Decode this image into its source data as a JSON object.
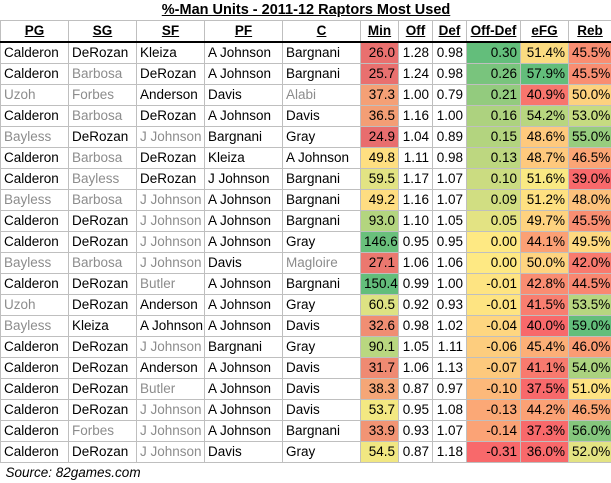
{
  "title": "%-Man Units - 2011-12 Raptors Most Used",
  "source": "Source: 82games.com",
  "headers": [
    "PG",
    "SG",
    "SF",
    "PF",
    "C",
    "Min",
    "Off",
    "Def",
    "Off-Def",
    "eFG",
    "Reb"
  ],
  "rows": [
    {
      "pg": "Calderon",
      "sg": "DeRozan",
      "sf": "Kleiza",
      "pf": "A Johnson",
      "c": "Bargnani",
      "min": "26.0",
      "off": "1.28",
      "def": "0.98",
      "offdef": "0.30",
      "efg": "51.4%",
      "reb": "45.5%",
      "dim": [],
      "colors": {
        "min": "#e9706f",
        "offdef": "#63be7b",
        "efg": "#fbdb81",
        "reb": "#f98e72"
      }
    },
    {
      "pg": "Calderon",
      "sg": "Barbosa",
      "sf": "DeRozan",
      "pf": "A Johnson",
      "c": "Bargnani",
      "min": "25.7",
      "off": "1.24",
      "def": "0.98",
      "offdef": "0.26",
      "efg": "57.9%",
      "reb": "45.5%",
      "dim": [
        "sg"
      ],
      "colors": {
        "min": "#e9706f",
        "offdef": "#79c47d",
        "efg": "#63be7b",
        "reb": "#f98e72"
      }
    },
    {
      "pg": "Uzoh",
      "sg": "Forbes",
      "sf": "Anderson",
      "pf": "Davis",
      "c": "Alabi",
      "min": "37.3",
      "off": "1.00",
      "def": "0.79",
      "offdef": "0.21",
      "efg": "40.9%",
      "reb": "50.0%",
      "dim": [
        "pg",
        "sg",
        "c"
      ],
      "colors": {
        "min": "#f4a076",
        "offdef": "#93cb7e",
        "efg": "#f8756d",
        "reb": "#fdd17f"
      }
    },
    {
      "pg": "Calderon",
      "sg": "Barbosa",
      "sf": "DeRozan",
      "pf": "A Johnson",
      "c": "Davis",
      "min": "36.5",
      "off": "1.16",
      "def": "1.00",
      "offdef": "0.16",
      "efg": "54.2%",
      "reb": "53.0%",
      "dim": [
        "sg"
      ],
      "colors": {
        "min": "#f39e75",
        "offdef": "#add27f",
        "efg": "#b8d680",
        "reb": "#c6db81"
      }
    },
    {
      "pg": "Bayless",
      "sg": "DeRozan",
      "sf": "J Johnson",
      "pf": "Bargnani",
      "c": "Gray",
      "min": "24.9",
      "off": "1.04",
      "def": "0.89",
      "offdef": "0.15",
      "efg": "48.6%",
      "reb": "55.0%",
      "dim": [
        "pg",
        "sf"
      ],
      "colors": {
        "min": "#e86d6e",
        "offdef": "#b3d47f",
        "efg": "#fec97d",
        "reb": "#97cd7e"
      }
    },
    {
      "pg": "Calderon",
      "sg": "Barbosa",
      "sf": "DeRozan",
      "pf": "Kleiza",
      "c": "A Johnson",
      "min": "49.8",
      "off": "1.11",
      "def": "0.98",
      "offdef": "0.13",
      "efg": "48.7%",
      "reb": "46.5%",
      "dim": [
        "sg"
      ],
      "colors": {
        "min": "#fedf81",
        "offdef": "#bdd780",
        "efg": "#fec97d",
        "reb": "#fba575"
      }
    },
    {
      "pg": "Calderon",
      "sg": "Bayless",
      "sf": "DeRozan",
      "pf": "J Johnson",
      "c": "Bargnani",
      "min": "59.5",
      "off": "1.17",
      "def": "1.07",
      "offdef": "0.10",
      "efg": "51.6%",
      "reb": "39.0%",
      "dim": [
        "sg"
      ],
      "colors": {
        "min": "#e2e383",
        "offdef": "#cbdc81",
        "efg": "#f9e983",
        "reb": "#f8696b"
      }
    },
    {
      "pg": "Bayless",
      "sg": "Barbosa",
      "sf": "J Johnson",
      "pf": "A Johnson",
      "c": "Bargnani",
      "min": "49.2",
      "off": "1.16",
      "def": "1.07",
      "offdef": "0.09",
      "efg": "51.2%",
      "reb": "48.0%",
      "dim": [
        "pg",
        "sg",
        "sf"
      ],
      "colors": {
        "min": "#fedd81",
        "offdef": "#d1de82",
        "efg": "#fee181",
        "reb": "#fdc17c"
      }
    },
    {
      "pg": "Calderon",
      "sg": "DeRozan",
      "sf": "J Johnson",
      "pf": "A Johnson",
      "c": "Bargnani",
      "min": "93.0",
      "off": "1.10",
      "def": "1.05",
      "offdef": "0.05",
      "efg": "49.7%",
      "reb": "45.5%",
      "dim": [
        "sf"
      ],
      "colors": {
        "min": "#b3d57f",
        "offdef": "#e3e383",
        "efg": "#fed27f",
        "reb": "#f98e72"
      }
    },
    {
      "pg": "Calderon",
      "sg": "DeRozan",
      "sf": "J Johnson",
      "pf": "A Johnson",
      "c": "Gray",
      "min": "146.6",
      "off": "0.95",
      "def": "0.95",
      "offdef": "0.00",
      "efg": "44.1%",
      "reb": "49.5%",
      "dim": [
        "sf"
      ],
      "colors": {
        "min": "#6ac07c",
        "offdef": "#fee983",
        "efg": "#fba075",
        "reb": "#fed980"
      }
    },
    {
      "pg": "Bayless",
      "sg": "Barbosa",
      "sf": "J Johnson",
      "pf": "Davis",
      "c": "Magloire",
      "min": "27.1",
      "off": "1.06",
      "def": "1.06",
      "offdef": "0.00",
      "efg": "50.0%",
      "reb": "42.0%",
      "dim": [
        "pg",
        "sg",
        "sf",
        "c"
      ],
      "colors": {
        "min": "#eb786f",
        "offdef": "#fee983",
        "efg": "#fed480",
        "reb": "#f87a6e"
      }
    },
    {
      "pg": "Calderon",
      "sg": "DeRozan",
      "sf": "Butler",
      "pf": "A Johnson",
      "c": "Bargnani",
      "min": "150.4",
      "off": "0.99",
      "def": "1.00",
      "offdef": "-0.01",
      "efg": "42.8%",
      "reb": "44.5%",
      "dim": [
        "sf"
      ],
      "colors": {
        "min": "#63be7b",
        "offdef": "#fee482",
        "efg": "#f98d72",
        "reb": "#f98771"
      }
    },
    {
      "pg": "Uzoh",
      "sg": "DeRozan",
      "sf": "Anderson",
      "pf": "A Johnson",
      "c": "Gray",
      "min": "60.5",
      "off": "0.92",
      "def": "0.93",
      "offdef": "-0.01",
      "efg": "41.5%",
      "reb": "53.5%",
      "dim": [
        "pg"
      ],
      "colors": {
        "min": "#dde283",
        "offdef": "#fee482",
        "efg": "#f87e70",
        "reb": "#b7d680"
      }
    },
    {
      "pg": "Bayless",
      "sg": "Kleiza",
      "sf": "A Johnson",
      "pf": "A Johnson",
      "c": "Davis",
      "min": "32.6",
      "off": "0.98",
      "def": "1.02",
      "offdef": "-0.04",
      "efg": "40.0%",
      "reb": "59.0%",
      "dim": [
        "pg"
      ],
      "colors": {
        "min": "#f08e73",
        "offdef": "#fed680",
        "efg": "#f8696b",
        "reb": "#63be7b"
      }
    },
    {
      "pg": "Calderon",
      "sg": "DeRozan",
      "sf": "J Johnson",
      "pf": "Bargnani",
      "c": "Gray",
      "min": "90.1",
      "off": "1.05",
      "def": "1.11",
      "offdef": "-0.06",
      "efg": "45.4%",
      "reb": "46.0%",
      "dim": [
        "sf"
      ],
      "colors": {
        "min": "#b9d780",
        "offdef": "#fdcd7e",
        "efg": "#fcaf77",
        "reb": "#fa9b74"
      }
    },
    {
      "pg": "Calderon",
      "sg": "DeRozan",
      "sf": "Anderson",
      "pf": "A Johnson",
      "c": "Davis",
      "min": "31.7",
      "off": "1.06",
      "def": "1.13",
      "offdef": "-0.07",
      "efg": "41.1%",
      "reb": "54.0%",
      "dim": [],
      "colors": {
        "min": "#ef8a72",
        "offdef": "#fdc97d",
        "efg": "#f87a6e",
        "reb": "#abd27f"
      }
    },
    {
      "pg": "Calderon",
      "sg": "DeRozan",
      "sf": "Butler",
      "pf": "A Johnson",
      "c": "Davis",
      "min": "38.3",
      "off": "0.87",
      "def": "0.97",
      "offdef": "-0.10",
      "efg": "37.5%",
      "reb": "51.0%",
      "dim": [
        "sf"
      ],
      "colors": {
        "min": "#f5a677",
        "offdef": "#fcb97a",
        "efg": "#f8696b",
        "reb": "#fee282"
      }
    },
    {
      "pg": "Calderon",
      "sg": "DeRozan",
      "sf": "J Johnson",
      "pf": "A Johnson",
      "c": "Davis",
      "min": "53.7",
      "off": "0.95",
      "def": "1.08",
      "offdef": "-0.13",
      "efg": "44.2%",
      "reb": "46.5%",
      "dim": [
        "sf"
      ],
      "colors": {
        "min": "#f3e882",
        "offdef": "#fba876",
        "efg": "#fba175",
        "reb": "#fba575"
      }
    },
    {
      "pg": "Calderon",
      "sg": "Forbes",
      "sf": "J Johnson",
      "pf": "A Johnson",
      "c": "Bargnani",
      "min": "33.9",
      "off": "0.93",
      "def": "1.07",
      "offdef": "-0.14",
      "efg": "37.3%",
      "reb": "56.0%",
      "dim": [
        "sg",
        "sf"
      ],
      "colors": {
        "min": "#f29474",
        "offdef": "#fba376",
        "efg": "#f8696b",
        "reb": "#85c77d"
      }
    },
    {
      "pg": "Calderon",
      "sg": "DeRozan",
      "sf": "J Johnson",
      "pf": "Davis",
      "c": "Gray",
      "min": "54.5",
      "off": "0.87",
      "def": "1.18",
      "offdef": "-0.31",
      "efg": "36.0%",
      "reb": "52.0%",
      "dim": [
        "sf"
      ],
      "colors": {
        "min": "#f1e782",
        "offdef": "#f8696b",
        "efg": "#f8696b",
        "reb": "#e3e383"
      }
    }
  ]
}
